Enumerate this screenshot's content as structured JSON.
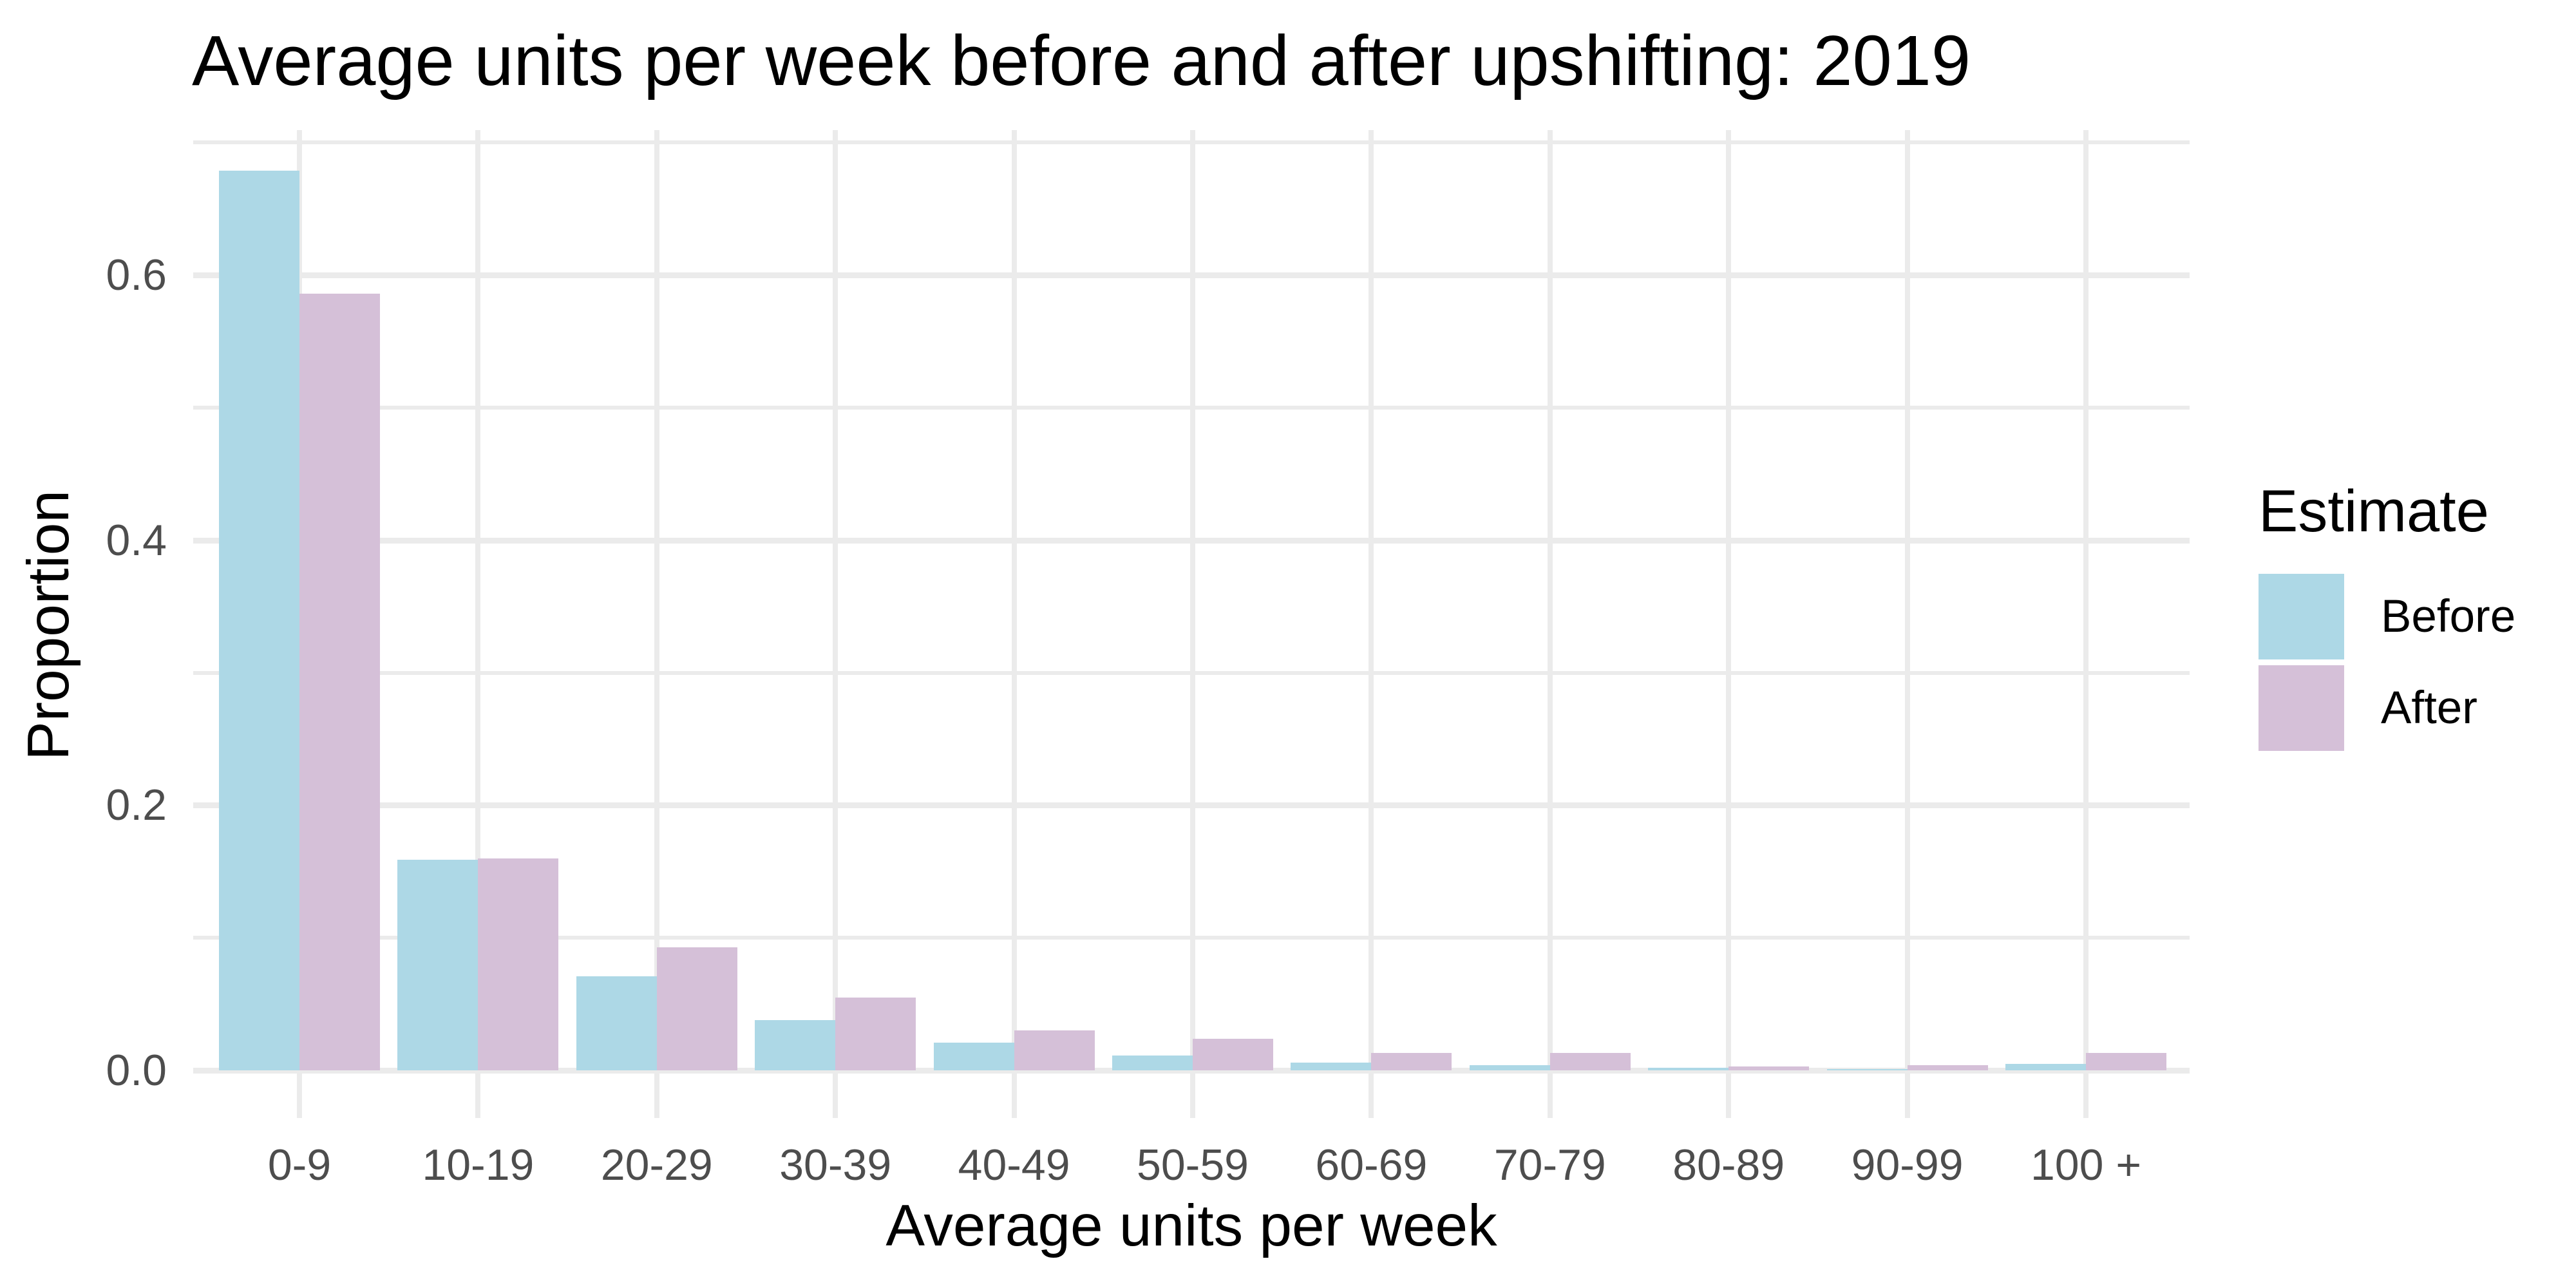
{
  "chart_data": {
    "type": "bar",
    "title": "Average units per week before and after upshifting: 2019",
    "xlabel": "Average units per week",
    "ylabel": "Proportion",
    "legend_title": "Estimate",
    "legend_position": "right",
    "grid": "on",
    "background_color": "#FFFFFF",
    "gridline_color": "#EBEBEB",
    "tick_label_color": "#4D4D4D",
    "text_color": "#000000",
    "categories": [
      "0-9",
      "10-19",
      "20-29",
      "30-39",
      "40-49",
      "50-59",
      "60-69",
      "70-79",
      "80-89",
      "90-99",
      "100 +"
    ],
    "series": [
      {
        "name": "Before",
        "color": "#ADD8E6",
        "values": [
          0.679,
          0.159,
          0.071,
          0.038,
          0.021,
          0.011,
          0.006,
          0.004,
          0.002,
          0.001,
          0.005
        ]
      },
      {
        "name": "After",
        "color": "#D5C0D8",
        "values": [
          0.586,
          0.16,
          0.093,
          0.055,
          0.03,
          0.024,
          0.013,
          0.013,
          0.003,
          0.004,
          0.013
        ]
      }
    ],
    "ylim": [
      0,
      0.71
    ],
    "yticks": [
      0,
      0.2,
      0.4,
      0.6
    ],
    "ytick_labels": [
      "0.0",
      "0.2",
      "0.4",
      "0.6"
    ],
    "yminor": [
      0.1,
      0.3,
      0.5,
      0.7
    ]
  }
}
